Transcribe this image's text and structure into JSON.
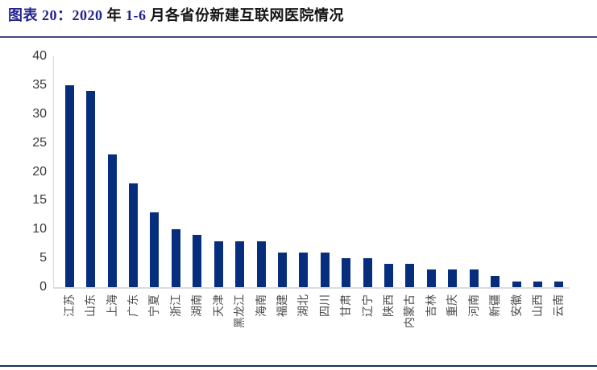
{
  "header": {
    "segments": [
      {
        "text": "图表 20：",
        "color": "#23238f"
      },
      {
        "text": "2020 ",
        "color": "#23238f"
      },
      {
        "text": "年 ",
        "color": "#141414"
      },
      {
        "text": "1-6 ",
        "color": "#23238f"
      },
      {
        "text": "月各省份新建互联网医院情况",
        "color": "#141414"
      }
    ],
    "full_title": "图表 20：2020 年 1-6 月各省份新建互联网医院情况"
  },
  "colors": {
    "bar": "#062e7c",
    "title_accent": "#23238f",
    "title_text": "#141414",
    "divider": "#45497c",
    "bottom_rule": "#16325f",
    "axis_line": "#d9d9d9",
    "tick_text": "#3a3a3a",
    "xlabel_text": "#4a4a4a"
  },
  "chart_data": {
    "type": "bar",
    "title": "2020 年 1-6 月各省份新建互联网医院情况",
    "categories": [
      "江苏",
      "山东",
      "上海",
      "广东",
      "宁夏",
      "浙江",
      "湖南",
      "天津",
      "黑龙江",
      "海南",
      "福建",
      "湖北",
      "四川",
      "甘肃",
      "辽宁",
      "陕西",
      "内蒙古",
      "吉林",
      "重庆",
      "河南",
      "新疆",
      "安徽",
      "山西",
      "云南"
    ],
    "values": [
      35,
      34,
      23,
      18,
      13,
      10,
      9,
      8,
      8,
      8,
      6,
      6,
      6,
      5,
      5,
      4,
      4,
      3,
      3,
      3,
      2,
      1,
      1,
      1
    ],
    "xlabel": "",
    "ylabel": "",
    "ylim": [
      0,
      40
    ],
    "yticks": [
      0,
      5,
      10,
      15,
      20,
      25,
      30,
      35,
      40
    ],
    "grid": false,
    "legend": null,
    "x_label_rotation": -90
  }
}
